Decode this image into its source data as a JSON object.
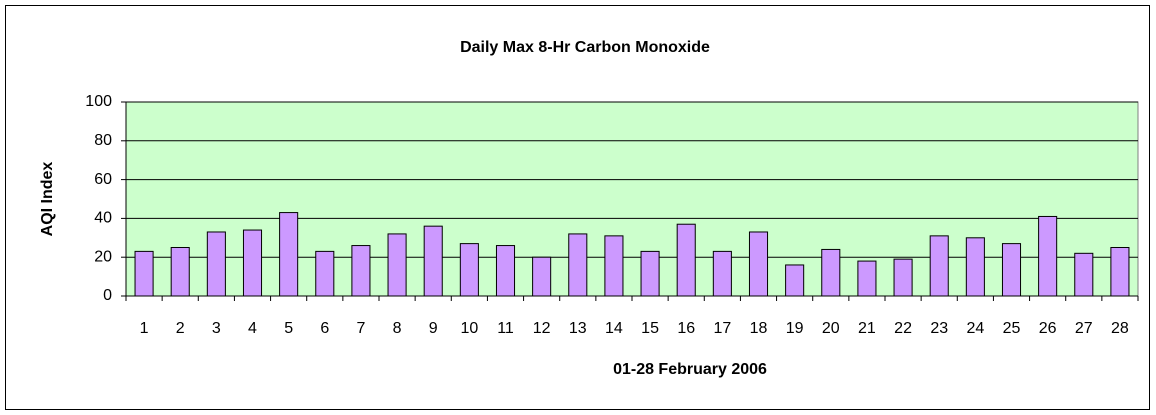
{
  "chart_data": {
    "type": "bar",
    "title": "Daily Max 8-Hr Carbon Monoxide",
    "x_label": "01-28 February 2006",
    "y_label": "AQI Index",
    "categories": [
      "1",
      "2",
      "3",
      "4",
      "5",
      "6",
      "7",
      "8",
      "9",
      "10",
      "11",
      "12",
      "13",
      "14",
      "15",
      "16",
      "17",
      "18",
      "19",
      "20",
      "21",
      "22",
      "23",
      "24",
      "25",
      "26",
      "27",
      "28"
    ],
    "values": [
      23,
      25,
      33,
      34,
      43,
      23,
      26,
      32,
      36,
      27,
      26,
      20,
      32,
      31,
      23,
      37,
      23,
      33,
      16,
      24,
      18,
      19,
      31,
      30,
      27,
      41,
      22,
      25
    ],
    "color": "#cc99ff",
    "plot_background": "#ccffcc",
    "ylim": [
      0,
      100
    ],
    "yticks": [
      0,
      20,
      40,
      60,
      80,
      100
    ],
    "grid": true
  }
}
